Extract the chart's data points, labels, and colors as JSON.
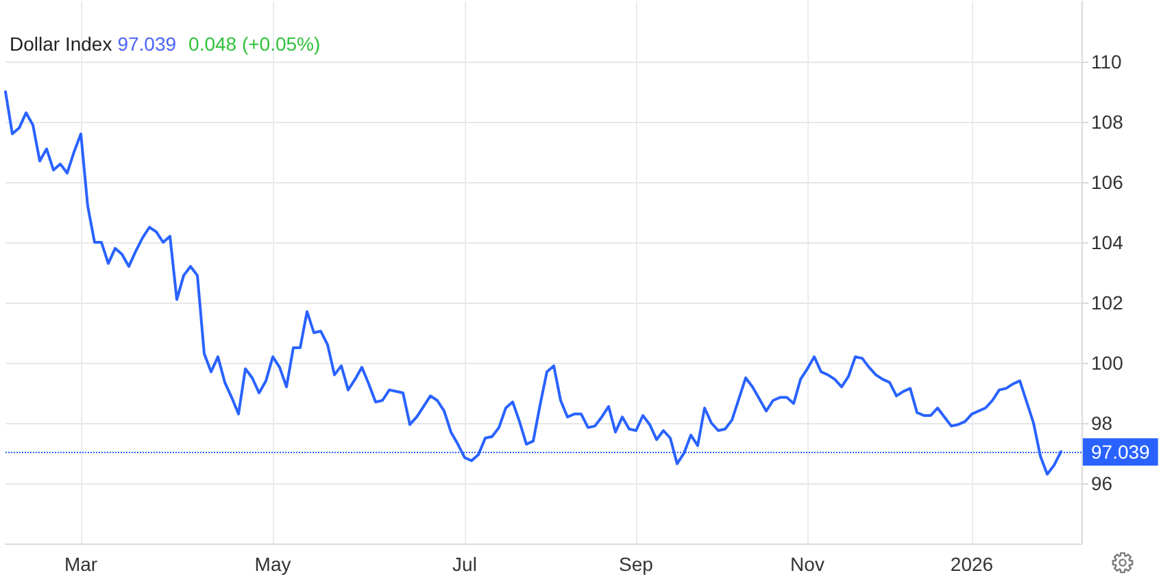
{
  "chart_data": {
    "type": "line",
    "title": "Dollar Index",
    "annotations": [
      "97.039",
      "0.048 (+0.05%)"
    ],
    "categories": [
      null,
      null,
      null,
      null,
      null,
      null,
      null,
      null,
      null,
      null,
      null,
      "Mar",
      null,
      null,
      null,
      null,
      null,
      null,
      null,
      null,
      null,
      null,
      null,
      null,
      null,
      null,
      null,
      null,
      null,
      null,
      null,
      null,
      null,
      null,
      null,
      null,
      null,
      null,
      null,
      "May",
      null,
      null,
      null,
      null,
      null,
      null,
      null,
      null,
      null,
      null,
      null,
      null,
      null,
      null,
      null,
      null,
      null,
      null,
      null,
      null,
      null,
      null,
      null,
      null,
      null,
      null,
      null,
      "Jul",
      null,
      null,
      null,
      null,
      null,
      null,
      null,
      null,
      null,
      null,
      null,
      null,
      null,
      null,
      null,
      null,
      null,
      null,
      null,
      null,
      null,
      null,
      null,
      null,
      "Sep",
      null,
      null,
      null,
      null,
      null,
      null,
      null,
      null,
      null,
      null,
      null,
      null,
      null,
      null,
      null,
      null,
      null,
      null,
      null,
      null,
      null,
      null,
      null,
      null,
      "Nov",
      null,
      null,
      null,
      null,
      null,
      null,
      null,
      null,
      null,
      null,
      null,
      null,
      null,
      null,
      null,
      null,
      null,
      null,
      null,
      null,
      null,
      null,
      null,
      "2026",
      null,
      null,
      null,
      null,
      null,
      null,
      null,
      null,
      null,
      null,
      null,
      null,
      null,
      null,
      null,
      null
    ],
    "series": [
      {
        "color": "#2962ff",
        "values": [
          109.0,
          107.6,
          107.8,
          108.3,
          107.9,
          106.7,
          107.1,
          106.4,
          106.6,
          106.3,
          107.0,
          107.6,
          105.2,
          104.0,
          104.0,
          103.3,
          103.8,
          103.6,
          103.2,
          103.7,
          104.15,
          104.5,
          104.35,
          104.0,
          104.2,
          102.1,
          102.9,
          103.2,
          102.9,
          100.3,
          99.7,
          100.2,
          99.35,
          98.85,
          98.3,
          99.8,
          99.5,
          99.0,
          99.4,
          100.2,
          99.85,
          99.2,
          100.5,
          100.5,
          101.7,
          101.0,
          101.05,
          100.6,
          99.6,
          99.9,
          99.1,
          99.45,
          99.85,
          99.3,
          98.7,
          98.75,
          99.1,
          99.05,
          99.0,
          97.95,
          98.2,
          98.55,
          98.9,
          98.75,
          98.4,
          97.7,
          97.3,
          96.85,
          96.75,
          96.95,
          97.5,
          97.55,
          97.85,
          98.5,
          98.7,
          98.05,
          97.3,
          97.4,
          98.6,
          99.7,
          99.9,
          98.75,
          98.2,
          98.3,
          98.3,
          97.85,
          97.9,
          98.2,
          98.55,
          97.7,
          98.2,
          97.8,
          97.75,
          98.25,
          97.95,
          97.45,
          97.75,
          97.5,
          96.65,
          97.0,
          97.6,
          97.25,
          98.5,
          98.0,
          97.75,
          97.8,
          98.1,
          98.8,
          99.5,
          99.2,
          98.8,
          98.4,
          98.75,
          98.85,
          98.85,
          98.65,
          99.45,
          99.8,
          100.2,
          99.7,
          99.6,
          99.45,
          99.2,
          99.55,
          100.2,
          100.15,
          99.85,
          99.6,
          99.45,
          99.35,
          98.9,
          99.05,
          99.15,
          98.35,
          98.25,
          98.25,
          98.5,
          98.2,
          97.9,
          97.95,
          98.05,
          98.3,
          98.4,
          98.5,
          98.75,
          99.1,
          99.15,
          99.3,
          99.4,
          98.7,
          98.0,
          96.9,
          96.3,
          96.6,
          97.05,
          null,
          null,
          null
        ]
      }
    ],
    "ylim": [
      94,
      112
    ],
    "yticks": [
      96,
      98,
      100,
      102,
      104,
      106,
      108,
      110
    ],
    "ref_lines": [
      {
        "axis": "y",
        "value": 97.039,
        "label": "97.039",
        "color": "#2962ff",
        "line_style": "dotted"
      }
    ],
    "grid": true,
    "marker": "none",
    "line_style": "solid"
  }
}
